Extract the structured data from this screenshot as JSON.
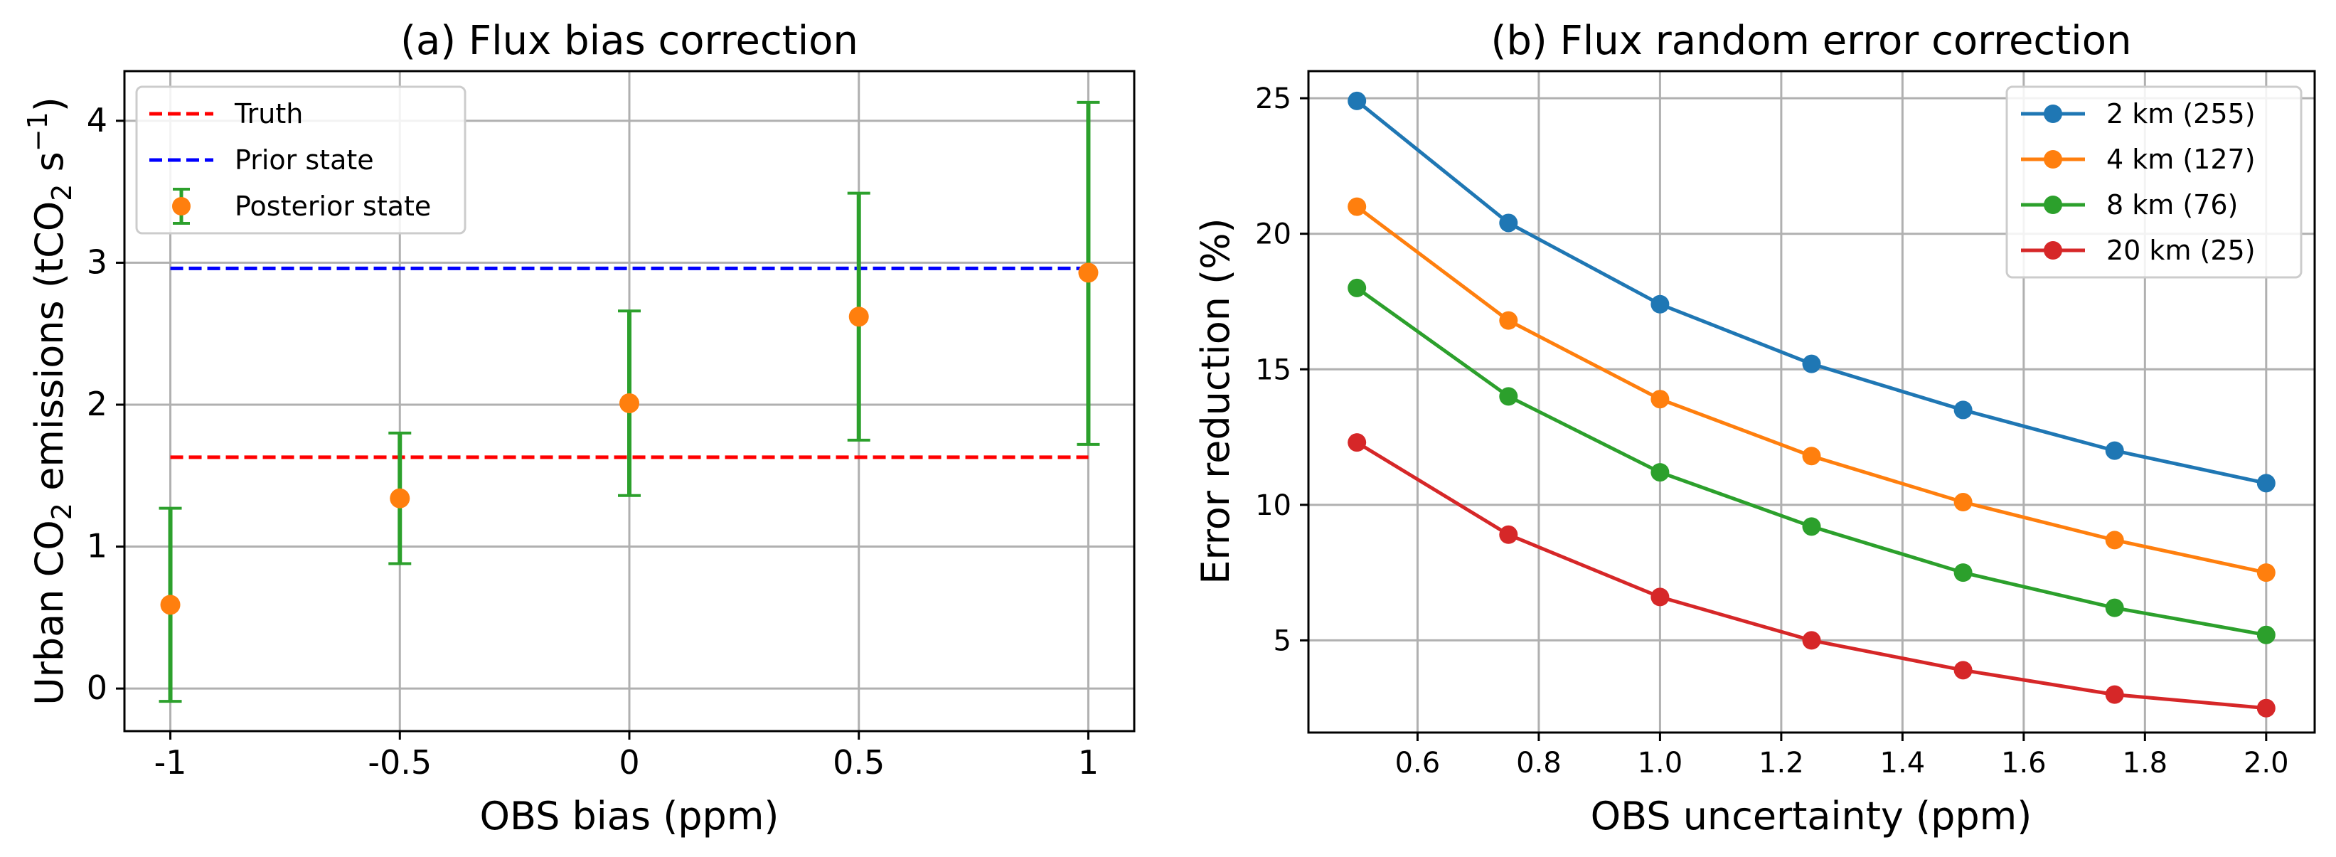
{
  "colors": {
    "truth": "#ff0000",
    "prior": "#0000ff",
    "posterior_marker": "#ff7f0e",
    "errorbar": "#2ca02c",
    "series": [
      "#1f77b4",
      "#ff7f0e",
      "#2ca02c",
      "#d62728"
    ]
  },
  "chart_data": [
    {
      "type": "scatter",
      "title": "(a) Flux bias correction",
      "xlabel": "OBS bias (ppm)",
      "ylabel_parts": [
        "Urban CO",
        "2",
        " emissions (tCO",
        "2",
        " s",
        "−1",
        ")"
      ],
      "xlim": [
        -1.1,
        1.1
      ],
      "ylim": [
        -0.3,
        4.35
      ],
      "xticks": [
        -1,
        -0.5,
        0,
        0.5,
        1
      ],
      "xtick_labels": [
        "-1",
        "-0.5",
        "0",
        "0.5",
        "1"
      ],
      "yticks": [
        0,
        1,
        2,
        3,
        4
      ],
      "ytick_labels": [
        "0",
        "1",
        "2",
        "3",
        "4"
      ],
      "grid": true,
      "legend_position": "top-left",
      "truth": {
        "label": "Truth",
        "y": 1.63,
        "x_range": [
          -1,
          1
        ]
      },
      "prior": {
        "label": "Prior state",
        "y": 2.96,
        "x_range": [
          -1,
          1
        ]
      },
      "posterior": {
        "label": "Posterior state",
        "x": [
          -1,
          -0.5,
          0,
          0.5,
          1
        ],
        "y": [
          0.59,
          1.34,
          2.01,
          2.62,
          2.93
        ],
        "err_low": [
          -0.09,
          0.88,
          1.36,
          1.75,
          1.72
        ],
        "err_high": [
          1.27,
          1.8,
          2.66,
          3.49,
          4.13
        ]
      }
    },
    {
      "type": "line",
      "title": "(b) Flux random error correction",
      "xlabel": "OBS uncertainty (ppm)",
      "ylabel": "Error reduction (%)",
      "xlim": [
        0.42,
        2.08
      ],
      "ylim": [
        1.6,
        26.0
      ],
      "xticks": [
        0.6,
        0.8,
        1.0,
        1.2,
        1.4,
        1.6,
        1.8,
        2.0
      ],
      "xtick_labels": [
        "0.6",
        "0.8",
        "1.0",
        "1.2",
        "1.4",
        "1.6",
        "1.8",
        "2.0"
      ],
      "yticks": [
        5,
        10,
        15,
        20,
        25
      ],
      "ytick_labels": [
        "5",
        "10",
        "15",
        "20",
        "25"
      ],
      "grid": true,
      "legend_position": "top-right",
      "x": [
        0.5,
        0.75,
        1.0,
        1.25,
        1.5,
        1.75,
        2.0
      ],
      "series": [
        {
          "name": "2 km (255)",
          "values": [
            24.9,
            20.4,
            17.4,
            15.2,
            13.5,
            12.0,
            10.8
          ]
        },
        {
          "name": "4 km (127)",
          "values": [
            21.0,
            16.8,
            13.9,
            11.8,
            10.1,
            8.7,
            7.5
          ]
        },
        {
          "name": "8 km (76)",
          "values": [
            18.0,
            14.0,
            11.2,
            9.2,
            7.5,
            6.2,
            5.2
          ]
        },
        {
          "name": "20 km (25)",
          "values": [
            12.3,
            8.9,
            6.6,
            5.0,
            3.9,
            3.0,
            2.5
          ]
        }
      ]
    }
  ]
}
